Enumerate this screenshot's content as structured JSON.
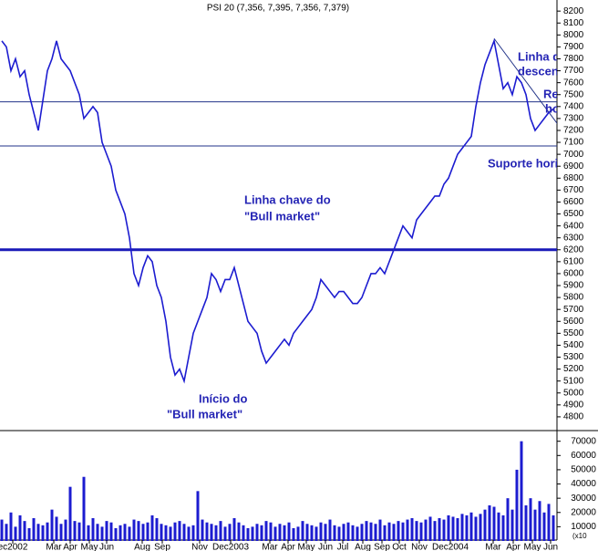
{
  "chart_data": {
    "type": "line",
    "title": "PSI 20 (7,356, 7,395, 7,356, 7,379)",
    "color": "#1c1cd0",
    "x_labels": [
      "ec2002",
      "Mar",
      "Apr",
      "May",
      "Jun",
      "Aug",
      "Sep",
      "Nov",
      "Dec2003",
      "Mar",
      "Apr",
      "May",
      "Jun",
      "Jul",
      "Aug",
      "Sep",
      "Oct",
      "Nov",
      "Dec2004",
      "Mar",
      "Apr",
      "May",
      "Jun"
    ],
    "values": [
      7950,
      7900,
      7700,
      7800,
      7650,
      7700,
      7500,
      7350,
      7200,
      7450,
      7700,
      7800,
      7950,
      7800,
      7750,
      7700,
      7600,
      7500,
      7300,
      7350,
      7400,
      7350,
      7100,
      7000,
      6900,
      6700,
      6600,
      6500,
      6300,
      6000,
      5900,
      6050,
      6150,
      6100,
      5900,
      5800,
      5600,
      5300,
      5150,
      5200,
      5100,
      5300,
      5500,
      5600,
      5700,
      5800,
      6000,
      5950,
      5850,
      5950,
      5950,
      6050,
      5900,
      5750,
      5600,
      5550,
      5500,
      5350,
      5250,
      5300,
      5350,
      5400,
      5450,
      5400,
      5500,
      5550,
      5600,
      5650,
      5700,
      5800,
      5950,
      5900,
      5850,
      5800,
      5850,
      5850,
      5800,
      5750,
      5750,
      5800,
      5900,
      6000,
      6000,
      6050,
      6000,
      6100,
      6200,
      6300,
      6400,
      6350,
      6300,
      6450,
      6500,
      6550,
      6600,
      6650,
      6650,
      6750,
      6800,
      6900,
      7000,
      7050,
      7100,
      7150,
      7400,
      7600,
      7750,
      7850,
      7950,
      7750,
      7550,
      7600,
      7500,
      7650,
      7600,
      7500,
      7300,
      7200,
      7250,
      7300,
      7350,
      7380
    ],
    "ylim": [
      4700,
      8270
    ],
    "yticks": [
      4800,
      4900,
      5000,
      5100,
      5200,
      5300,
      5400,
      5500,
      5600,
      5700,
      5800,
      5900,
      6000,
      6100,
      6200,
      6300,
      6400,
      6500,
      6600,
      6700,
      6800,
      6900,
      7000,
      7100,
      7200,
      7300,
      7400,
      7500,
      7600,
      7700,
      7800,
      7900,
      8000,
      8100,
      8200
    ],
    "resistance": 7440,
    "support": 7070,
    "key_line": 6200,
    "trendline": [
      [
        108,
        7970
      ],
      [
        122,
        7250
      ]
    ],
    "volume": {
      "values": [
        15000,
        12000,
        20000,
        10000,
        18000,
        14000,
        9000,
        16000,
        12000,
        11000,
        13000,
        22000,
        17000,
        12000,
        15000,
        38000,
        14000,
        13000,
        45000,
        11000,
        16000,
        12000,
        10000,
        14000,
        13000,
        9000,
        11000,
        12000,
        10000,
        15000,
        14000,
        12000,
        13000,
        18000,
        16000,
        12000,
        11000,
        10000,
        13000,
        14000,
        12000,
        10000,
        11000,
        35000,
        15000,
        13000,
        12000,
        11000,
        14000,
        10000,
        12000,
        16000,
        13000,
        11000,
        9000,
        10000,
        12000,
        11000,
        14000,
        13000,
        10000,
        12000,
        11000,
        13000,
        9000,
        10000,
        14000,
        12000,
        11000,
        10000,
        13000,
        12000,
        15000,
        11000,
        10000,
        12000,
        13000,
        11000,
        10000,
        12000,
        14000,
        13000,
        12000,
        15000,
        11000,
        13000,
        12000,
        14000,
        13000,
        15000,
        16000,
        14000,
        13000,
        15000,
        17000,
        14000,
        16000,
        15000,
        18000,
        17000,
        16000,
        19000,
        18000,
        20000,
        17000,
        19000,
        22000,
        25000,
        24000,
        20000,
        18000,
        30000,
        22000,
        50000,
        70000,
        25000,
        30000,
        22000,
        28000,
        20000,
        26000,
        18000
      ],
      "ylim": [
        0,
        73000
      ],
      "yticks": [
        10000,
        20000,
        30000,
        40000,
        50000,
        60000,
        70000
      ],
      "unit_label": "(x10"
    },
    "annotations": [
      "Linha de",
      "descenc",
      "Res",
      "hor",
      "Suporte horiz",
      "Linha chave do",
      "\"Bull market\"",
      "Início do",
      "\"Bull market\""
    ]
  }
}
